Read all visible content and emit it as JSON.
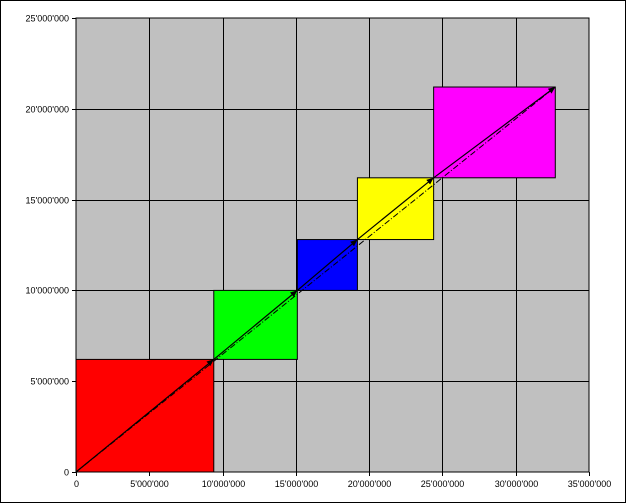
{
  "chart_data": {
    "type": "scatter",
    "title": "",
    "xlabel": "",
    "ylabel": "",
    "xlim": [
      0,
      35000000
    ],
    "ylim": [
      0,
      25000000
    ],
    "x_ticks": [
      {
        "value": 0,
        "label": "0"
      },
      {
        "value": 5000000,
        "label": "5'000'000"
      },
      {
        "value": 10000000,
        "label": "10'000'000"
      },
      {
        "value": 15000000,
        "label": "15'000'000"
      },
      {
        "value": 20000000,
        "label": "20'000'000"
      },
      {
        "value": 25000000,
        "label": "25'000'000"
      },
      {
        "value": 30000000,
        "label": "30'000'000"
      },
      {
        "value": 35000000,
        "label": "35'000'000"
      }
    ],
    "y_ticks": [
      {
        "value": 0,
        "label": "0"
      },
      {
        "value": 5000000,
        "label": "5'000'000"
      },
      {
        "value": 10000000,
        "label": "10'000'000"
      },
      {
        "value": 15000000,
        "label": "15'000'000"
      },
      {
        "value": 20000000,
        "label": "20'000'000"
      },
      {
        "value": 25000000,
        "label": "25'000'000"
      }
    ],
    "grid": true,
    "plot_background": "#c0c0c0",
    "rectangles": [
      {
        "x0": 0,
        "y0": 0,
        "x1": 9400000,
        "y1": 6200000,
        "color": "#ff0000"
      },
      {
        "x0": 9400000,
        "y0": 6200000,
        "x1": 15100000,
        "y1": 10000000,
        "color": "#00ff00"
      },
      {
        "x0": 15100000,
        "y0": 10000000,
        "x1": 19200000,
        "y1": 12800000,
        "color": "#0000ff"
      },
      {
        "x0": 19200000,
        "y0": 12800000,
        "x1": 24400000,
        "y1": 16200000,
        "color": "#ffff00"
      },
      {
        "x0": 24400000,
        "y0": 16200000,
        "x1": 32700000,
        "y1": 21200000,
        "color": "#ff00ff"
      }
    ],
    "arrow_path": [
      [
        0,
        0
      ],
      [
        9400000,
        6200000
      ],
      [
        15100000,
        10000000
      ],
      [
        19200000,
        12800000
      ],
      [
        24400000,
        16200000
      ],
      [
        32700000,
        21200000
      ]
    ],
    "dash_dot_line": {
      "from": [
        0,
        0
      ],
      "to": [
        32700000,
        21200000
      ]
    }
  }
}
